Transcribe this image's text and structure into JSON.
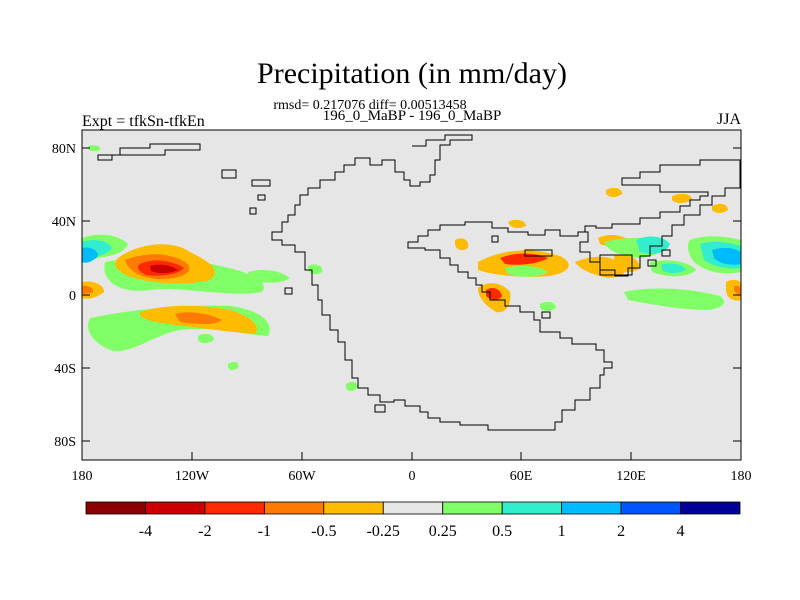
{
  "title": "Precipitation (in mm/day)",
  "stats_line": "rmsd= 0.217076 diff= 0.00513458",
  "case_line": "196_0_MaBP - 196_0_MaBP",
  "left_label": "Expt = tfkSn-tfkEn",
  "right_label": "JJA",
  "axes": {
    "x_ticks": [
      "180",
      "120W",
      "60W",
      "0",
      "60E",
      "120E",
      "180"
    ],
    "y_ticks": [
      "80N",
      "40N",
      "0",
      "40S",
      "80S"
    ]
  },
  "colorbar": {
    "colors": [
      "#8b0000",
      "#cc0000",
      "#ff2a00",
      "#ff7a00",
      "#ffbb00",
      "#e6e6e6",
      "#80ff66",
      "#33eecc",
      "#00bbff",
      "#0055ff",
      "#000099"
    ],
    "labels": [
      "-4",
      "-2",
      "-1",
      "-0.5",
      "-0.25",
      "0.25",
      "0.5",
      "1",
      "2",
      "4"
    ]
  },
  "colors": {
    "background": "#e6e6e6",
    "coast": "#000000"
  }
}
